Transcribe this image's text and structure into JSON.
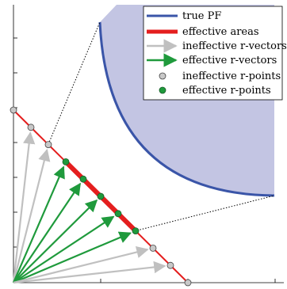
{
  "legend": {
    "true_pf": "true PF",
    "effective_areas": "effective areas",
    "ineffective_vectors": "ineffective r-vectors",
    "effective_vectors": "effective r-vectors",
    "ineffective_points": "ineffective r-points",
    "effective_points": "effective r-points"
  },
  "colors": {
    "true_pf": "#3a55a8",
    "pf_region": "#c3c5e3",
    "effective_area": "#e41e1e",
    "ineffective": "#c0c0c0",
    "effective": "#1f9a3c",
    "ineffective_point": "#c8c8c8",
    "effective_point": "#1f9a3c"
  },
  "reference_points": [
    {
      "t": 0.0,
      "effective": false
    },
    {
      "t": 0.1,
      "effective": false
    },
    {
      "t": 0.2,
      "effective": false
    },
    {
      "t": 0.3,
      "effective": true
    },
    {
      "t": 0.4,
      "effective": true
    },
    {
      "t": 0.5,
      "effective": true
    },
    {
      "t": 0.6,
      "effective": true
    },
    {
      "t": 0.7,
      "effective": true
    },
    {
      "t": 0.8,
      "effective": false
    },
    {
      "t": 0.9,
      "effective": false
    },
    {
      "t": 1.0,
      "effective": false
    }
  ],
  "effective_range": [
    0.3,
    0.7
  ]
}
